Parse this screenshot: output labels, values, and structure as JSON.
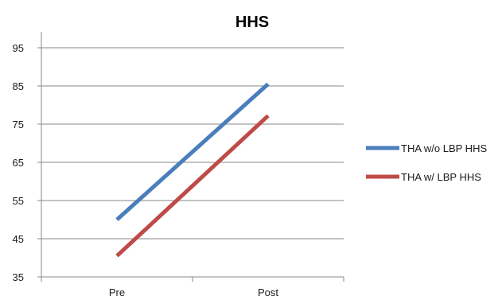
{
  "chart_data": {
    "type": "line",
    "title": "HHS",
    "xlabel": "",
    "ylabel": "",
    "categories": [
      "Pre",
      "Post"
    ],
    "ylim": [
      35,
      95
    ],
    "yticks": [
      35,
      45,
      55,
      65,
      75,
      85,
      95
    ],
    "grid": "horizontal",
    "legend_position": "right",
    "series": [
      {
        "name": "THA w/o LBP HHS",
        "values": [
          50,
          85.5
        ],
        "color": "#4a7ebb"
      },
      {
        "name": "THA w/ LBP HHS",
        "values": [
          40.5,
          77.2
        ],
        "color": "#be4b48"
      }
    ]
  }
}
